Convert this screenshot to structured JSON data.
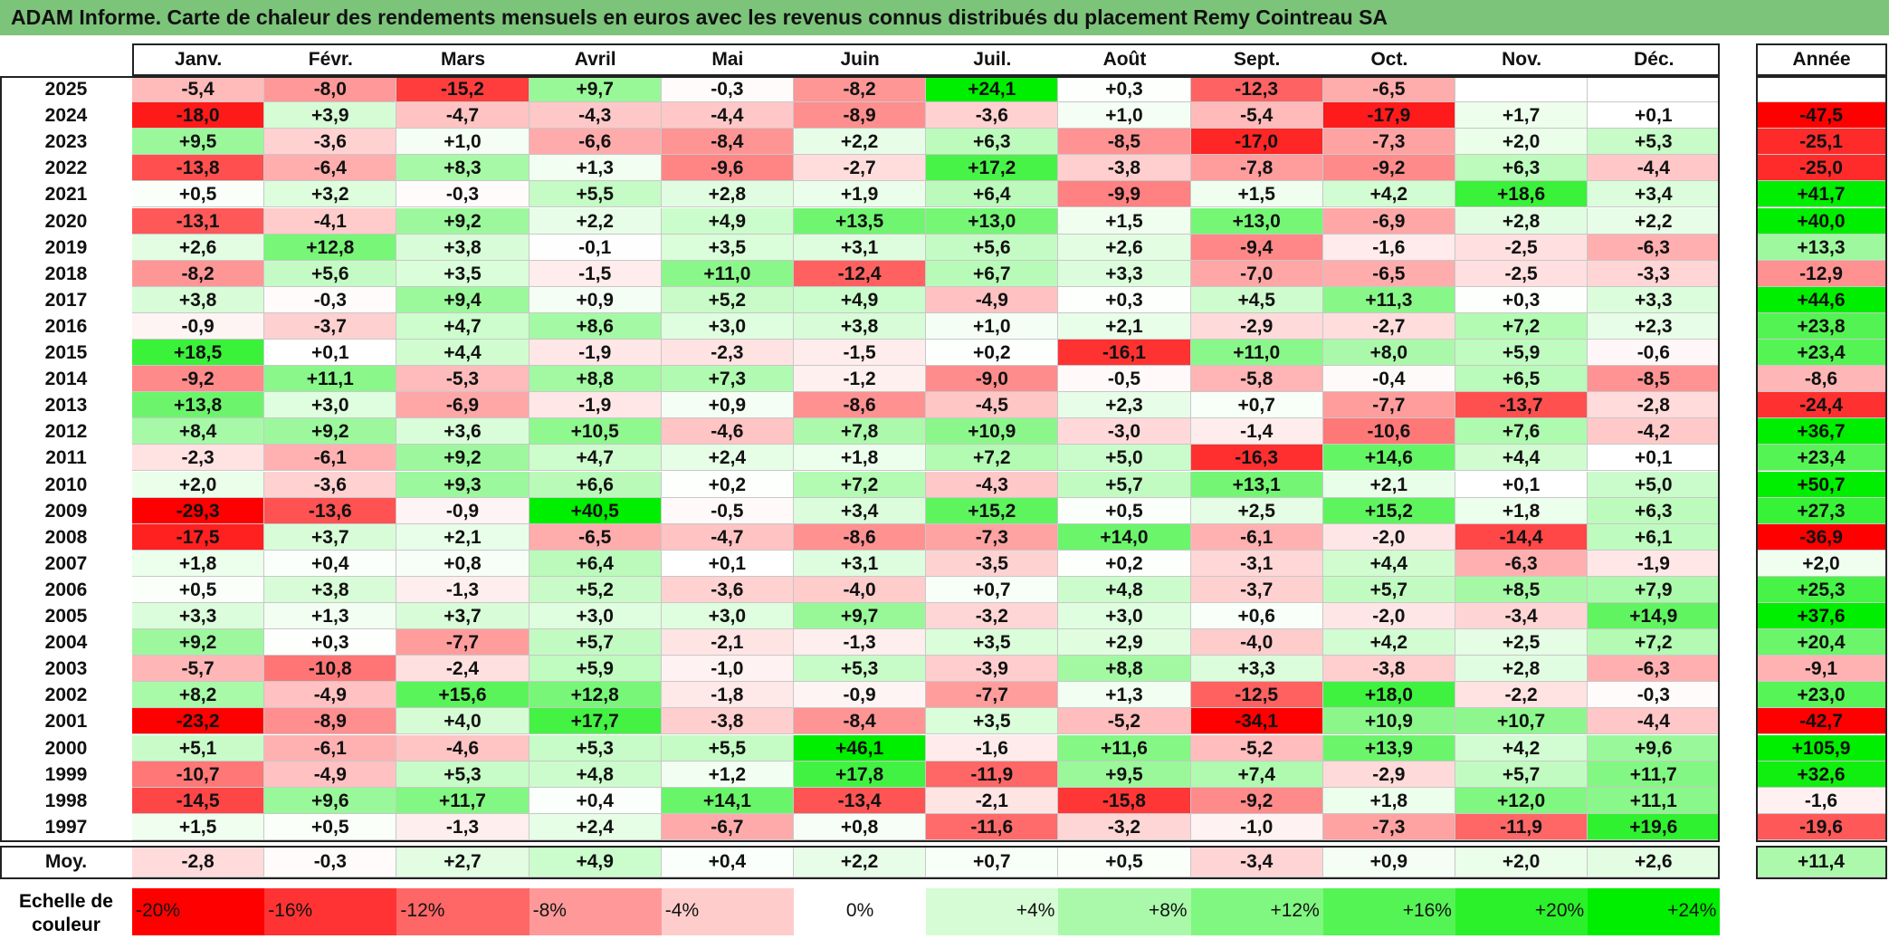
{
  "chart_data": {
    "type": "heatmap",
    "title": "ADAM Informe. Carte de chaleur des rendements mensuels en euros avec les revenus connus distribués du placement Remy Cointreau SA",
    "columns": [
      "Janv.",
      "Févr.",
      "Mars",
      "Avril",
      "Mai",
      "Juin",
      "Juil.",
      "Août",
      "Sept.",
      "Oct.",
      "Nov.",
      "Déc."
    ],
    "year_column": "Année",
    "rows": [
      {
        "year": "2025",
        "values": [
          -5.4,
          -8.0,
          -15.2,
          9.7,
          -0.3,
          -8.2,
          24.1,
          0.3,
          -12.3,
          -6.5,
          null,
          null
        ],
        "annual": null
      },
      {
        "year": "2024",
        "values": [
          -18.0,
          3.9,
          -4.7,
          -4.3,
          -4.4,
          -8.9,
          -3.6,
          1.0,
          -5.4,
          -17.9,
          1.7,
          0.1
        ],
        "annual": -47.5
      },
      {
        "year": "2023",
        "values": [
          9.5,
          -3.6,
          1.0,
          -6.6,
          -8.4,
          2.2,
          6.3,
          -8.5,
          -17.0,
          -7.3,
          2.0,
          5.3
        ],
        "annual": -25.1
      },
      {
        "year": "2022",
        "values": [
          -13.8,
          -6.4,
          8.3,
          1.3,
          -9.6,
          -2.7,
          17.2,
          -3.8,
          -7.8,
          -9.2,
          6.3,
          -4.4
        ],
        "annual": -25.0
      },
      {
        "year": "2021",
        "values": [
          0.5,
          3.2,
          -0.3,
          5.5,
          2.8,
          1.9,
          6.4,
          -9.9,
          1.5,
          4.2,
          18.6,
          3.4
        ],
        "annual": 41.7
      },
      {
        "year": "2020",
        "values": [
          -13.1,
          -4.1,
          9.2,
          2.2,
          4.9,
          13.5,
          13.0,
          1.5,
          13.0,
          -6.9,
          2.8,
          2.2
        ],
        "annual": 40.0
      },
      {
        "year": "2019",
        "values": [
          2.6,
          12.8,
          3.8,
          -0.1,
          3.5,
          3.1,
          5.6,
          2.6,
          -9.4,
          -1.6,
          -2.5,
          -6.3
        ],
        "annual": 13.3
      },
      {
        "year": "2018",
        "values": [
          -8.2,
          5.6,
          3.5,
          -1.5,
          11.0,
          -12.4,
          6.7,
          3.3,
          -7.0,
          -6.5,
          -2.5,
          -3.3
        ],
        "annual": -12.9
      },
      {
        "year": "2017",
        "values": [
          3.8,
          -0.3,
          9.4,
          0.9,
          5.2,
          4.9,
          -4.9,
          0.3,
          4.5,
          11.3,
          0.3,
          3.3
        ],
        "annual": 44.6
      },
      {
        "year": "2016",
        "values": [
          -0.9,
          -3.7,
          4.7,
          8.6,
          3.0,
          3.8,
          1.0,
          2.1,
          -2.9,
          -2.7,
          7.2,
          2.3
        ],
        "annual": 23.8
      },
      {
        "year": "2015",
        "values": [
          18.5,
          0.1,
          4.4,
          -1.9,
          -2.3,
          -1.5,
          0.2,
          -16.1,
          11.0,
          8.0,
          5.9,
          -0.6
        ],
        "annual": 23.4
      },
      {
        "year": "2014",
        "values": [
          -9.2,
          11.1,
          -5.3,
          8.8,
          7.3,
          -1.2,
          -9.0,
          -0.5,
          -5.8,
          -0.4,
          6.5,
          -8.5
        ],
        "annual": -8.6
      },
      {
        "year": "2013",
        "values": [
          13.8,
          3.0,
          -6.9,
          -1.9,
          0.9,
          -8.6,
          -4.5,
          2.3,
          0.7,
          -7.7,
          -13.7,
          -2.8
        ],
        "annual": -24.4
      },
      {
        "year": "2012",
        "values": [
          8.4,
          9.2,
          3.6,
          10.5,
          -4.6,
          7.8,
          10.9,
          -3.0,
          -1.4,
          -10.6,
          7.6,
          -4.2
        ],
        "annual": 36.7
      },
      {
        "year": "2011",
        "values": [
          -2.3,
          -6.1,
          9.2,
          4.7,
          2.4,
          1.8,
          7.2,
          5.0,
          -16.3,
          14.6,
          4.4,
          0.1
        ],
        "annual": 23.4
      },
      {
        "year": "2010",
        "values": [
          2.0,
          -3.6,
          9.3,
          6.6,
          0.2,
          7.2,
          -4.3,
          5.7,
          13.1,
          2.1,
          0.1,
          5.0
        ],
        "annual": 50.7
      },
      {
        "year": "2009",
        "values": [
          -29.3,
          -13.6,
          -0.9,
          40.5,
          -0.5,
          3.4,
          15.2,
          0.5,
          2.5,
          15.2,
          1.8,
          6.3
        ],
        "annual": 27.3
      },
      {
        "year": "2008",
        "values": [
          -17.5,
          3.7,
          2.1,
          -6.5,
          -4.7,
          -8.6,
          -7.3,
          14.0,
          -6.1,
          -2.0,
          -14.4,
          6.1
        ],
        "annual": -36.9
      },
      {
        "year": "2007",
        "values": [
          1.8,
          0.4,
          0.8,
          6.4,
          0.1,
          3.1,
          -3.5,
          0.2,
          -3.1,
          4.4,
          -6.3,
          -1.9
        ],
        "annual": 2.0
      },
      {
        "year": "2006",
        "values": [
          0.5,
          3.8,
          -1.3,
          5.2,
          -3.6,
          -4.0,
          0.7,
          4.8,
          -3.7,
          5.7,
          8.5,
          7.9
        ],
        "annual": 25.3
      },
      {
        "year": "2005",
        "values": [
          3.3,
          1.3,
          3.7,
          3.0,
          3.0,
          9.7,
          -3.2,
          3.0,
          0.6,
          -2.0,
          -3.4,
          14.9
        ],
        "annual": 37.6
      },
      {
        "year": "2004",
        "values": [
          9.2,
          0.3,
          -7.7,
          5.7,
          -2.1,
          -1.3,
          3.5,
          2.9,
          -4.0,
          4.2,
          2.5,
          7.2
        ],
        "annual": 20.4
      },
      {
        "year": "2003",
        "values": [
          -5.7,
          -10.8,
          -2.4,
          5.9,
          -1.0,
          5.3,
          -3.9,
          8.8,
          3.3,
          -3.8,
          2.8,
          -6.3
        ],
        "annual": -9.1
      },
      {
        "year": "2002",
        "values": [
          8.2,
          -4.9,
          15.6,
          12.8,
          -1.8,
          -0.9,
          -7.7,
          1.3,
          -12.5,
          18.0,
          -2.2,
          -0.3
        ],
        "annual": 23.0
      },
      {
        "year": "2001",
        "values": [
          -23.2,
          -8.9,
          4.0,
          17.7,
          -3.8,
          -8.4,
          3.5,
          -5.2,
          -34.1,
          10.9,
          10.7,
          -4.4
        ],
        "annual": -42.7
      },
      {
        "year": "2000",
        "values": [
          5.1,
          -6.1,
          -4.6,
          5.3,
          5.5,
          46.1,
          -1.6,
          11.6,
          -5.2,
          13.9,
          4.2,
          9.6
        ],
        "annual": 105.9
      },
      {
        "year": "1999",
        "values": [
          -10.7,
          -4.9,
          5.3,
          4.8,
          1.2,
          17.8,
          -11.9,
          9.5,
          7.4,
          -2.9,
          5.7,
          11.7
        ],
        "annual": 32.6
      },
      {
        "year": "1998",
        "values": [
          -14.5,
          9.6,
          11.7,
          0.4,
          14.1,
          -13.4,
          -2.1,
          -15.8,
          -9.2,
          1.8,
          12.0,
          11.1
        ],
        "annual": -1.6
      },
      {
        "year": "1997",
        "values": [
          1.5,
          0.5,
          -1.3,
          2.4,
          -6.7,
          0.8,
          -11.6,
          -3.2,
          -1.0,
          -7.3,
          -11.9,
          19.6
        ],
        "annual": -19.6
      }
    ],
    "average": {
      "label": "Moy.",
      "values": [
        -2.8,
        -0.3,
        2.7,
        4.9,
        0.4,
        2.2,
        0.7,
        0.5,
        -3.4,
        0.9,
        2.0,
        2.6
      ],
      "annual": 11.4
    },
    "scale_label": "Echelle de couleur",
    "scale": [
      {
        "label": "-20%",
        "value": -20
      },
      {
        "label": "-16%",
        "value": -16
      },
      {
        "label": "-12%",
        "value": -12
      },
      {
        "label": "-8%",
        "value": -8
      },
      {
        "label": "-4%",
        "value": -4
      },
      {
        "label": "0%",
        "value": 0
      },
      {
        "label": "+4%",
        "value": 4
      },
      {
        "label": "+8%",
        "value": 8
      },
      {
        "label": "+12%",
        "value": 12
      },
      {
        "label": "+16%",
        "value": 16
      },
      {
        "label": "+20%",
        "value": 20
      },
      {
        "label": "+24%",
        "value": 24
      }
    ],
    "colors": {
      "negative": "#ff0000",
      "neutral": "#ffffff",
      "positive": "#00ee00",
      "title_bg": "#7cc47a"
    }
  }
}
